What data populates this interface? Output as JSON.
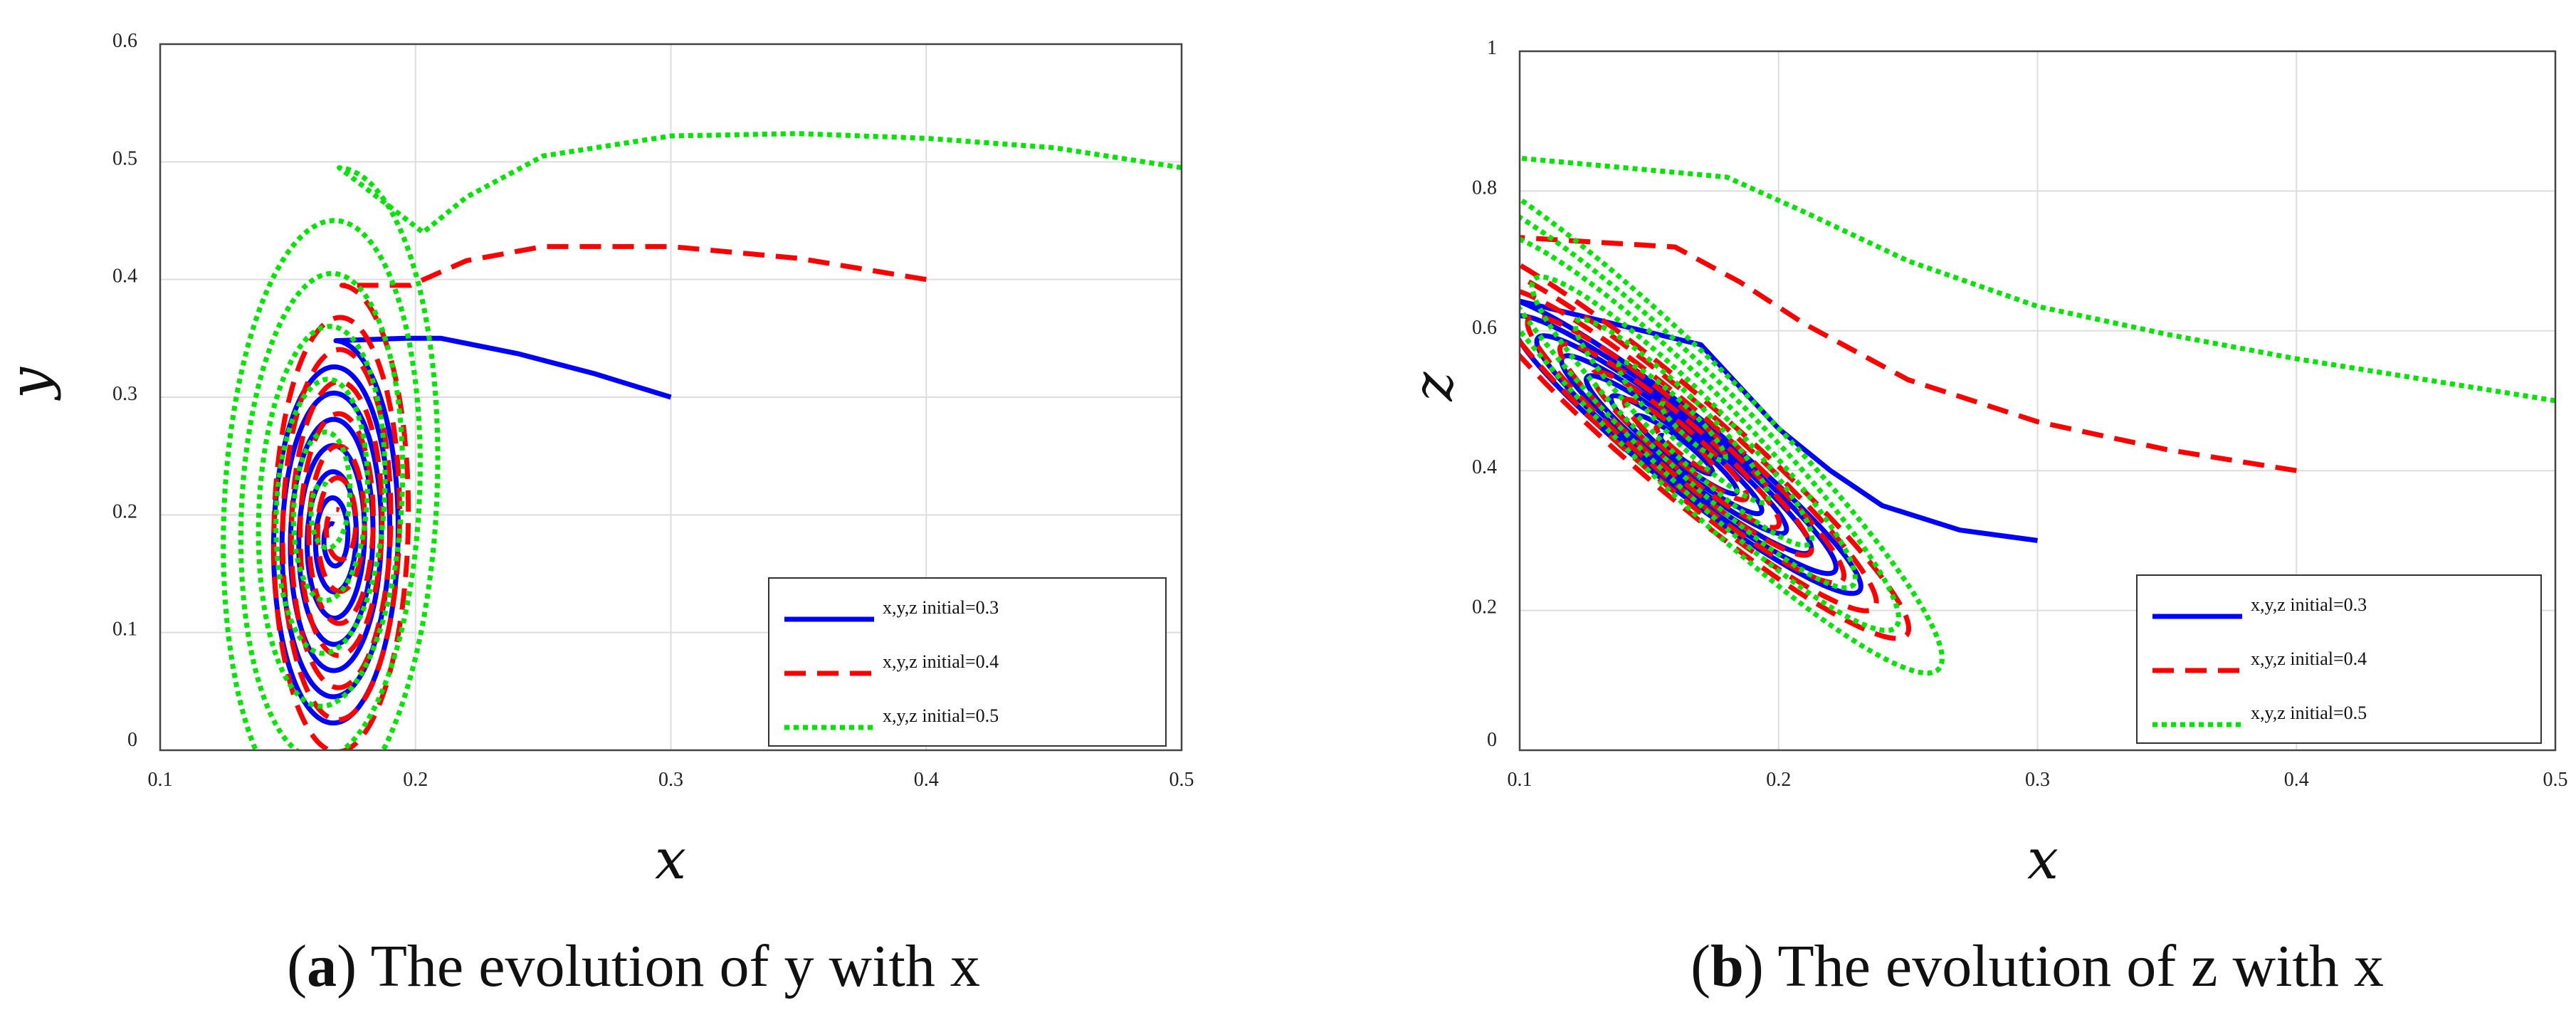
{
  "chart_data": [
    {
      "type": "line",
      "caption": {
        "open": "(",
        "letter": "a",
        "text": ") The evolution of y with x"
      },
      "xlabel": "x",
      "ylabel": "y",
      "xlim": [
        0.1,
        0.5
      ],
      "ylim": [
        0,
        0.6
      ],
      "x_ticks": [
        0.1,
        0.2,
        0.3,
        0.4,
        0.5
      ],
      "x_tick_labels": [
        "0.1",
        "0.2",
        "0.3",
        "0.4",
        "0.5"
      ],
      "y_ticks": [
        0,
        0.1,
        0.2,
        0.3,
        0.4,
        0.5,
        0.6
      ],
      "y_tick_labels": [
        "0",
        "0.1",
        "0.2",
        "0.3",
        "0.4",
        "0.5",
        "0.6"
      ],
      "grid": true,
      "legend_position": "bottom-right",
      "series": [
        {
          "name": "x,y,z initial=0.3",
          "color": "#0000ff",
          "style": "solid",
          "tail": [
            [
              0.3,
              0.3
            ],
            [
              0.27,
              0.32
            ],
            [
              0.24,
              0.337
            ],
            [
              0.21,
              0.35
            ],
            [
              0.196,
              0.35
            ]
          ],
          "spiral": {
            "center": [
              0.168,
              0.18
            ],
            "rx_start": 0.026,
            "rx_end": 0.003,
            "ry_start": 0.168,
            "ry_end": 0.012,
            "tilt": 0.05,
            "turns": 7
          }
        },
        {
          "name": "x,y,z initial=0.4",
          "color": "#ff0000",
          "style": "dashed",
          "tail": [
            [
              0.4,
              0.4
            ],
            [
              0.35,
              0.418
            ],
            [
              0.3,
              0.428
            ],
            [
              0.25,
              0.428
            ],
            [
              0.22,
              0.416
            ],
            [
              0.198,
              0.395
            ]
          ],
          "spiral": {
            "center": [
              0.17,
              0.19
            ],
            "rx_start": 0.028,
            "rx_end": 0.004,
            "ry_start": 0.205,
            "ry_end": 0.014,
            "tilt": 0.06,
            "turns": 7
          }
        },
        {
          "name": "x,y,z initial=0.5",
          "color": "#00e600",
          "style": "dotted",
          "tail": [
            [
              0.5,
              0.495
            ],
            [
              0.45,
              0.512
            ],
            [
              0.4,
              0.52
            ],
            [
              0.35,
              0.524
            ],
            [
              0.3,
              0.522
            ],
            [
              0.25,
              0.505
            ],
            [
              0.22,
              0.47
            ],
            [
              0.203,
              0.44
            ]
          ],
          "spiral": {
            "center": [
              0.165,
              0.21
            ],
            "rx_start": 0.045,
            "rx_end": 0.004,
            "ry_start": 0.285,
            "ry_end": 0.015,
            "tilt": 0.18,
            "turns": 6
          }
        }
      ]
    },
    {
      "type": "line",
      "caption": {
        "open": "(",
        "letter": "b",
        "text": ") The evolution of z with x"
      },
      "xlabel": "x",
      "ylabel": "z",
      "xlim": [
        0.1,
        0.5
      ],
      "ylim": [
        0,
        1
      ],
      "x_ticks": [
        0.1,
        0.2,
        0.3,
        0.4,
        0.5
      ],
      "x_tick_labels": [
        "0.1",
        "0.2",
        "0.3",
        "0.4",
        "0.5"
      ],
      "y_ticks": [
        0,
        0.2,
        0.4,
        0.6,
        0.8,
        1
      ],
      "y_tick_labels": [
        "0",
        "0.2",
        "0.4",
        "0.6",
        "0.8",
        "1"
      ],
      "grid": true,
      "legend_position": "bottom-right",
      "series": [
        {
          "name": "x,y,z initial=0.3",
          "color": "#0000ff",
          "style": "solid",
          "tail": [
            [
              0.3,
              0.3
            ],
            [
              0.27,
              0.315
            ],
            [
              0.24,
              0.35
            ],
            [
              0.22,
              0.4
            ],
            [
              0.2,
              0.46
            ],
            [
              0.185,
              0.52
            ],
            [
              0.17,
              0.58
            ]
          ],
          "spiral": {
            "center": [
              0.162,
              0.43
            ],
            "rx_start": 0.023,
            "rx_end": 0.003,
            "ry_start": 0.22,
            "ry_end": 0.02,
            "tilt": -3.2,
            "turns": 7
          }
        },
        {
          "name": "x,y,z initial=0.4",
          "color": "#ff0000",
          "style": "dashed",
          "tail": [
            [
              0.4,
              0.4
            ],
            [
              0.35,
              0.43
            ],
            [
              0.3,
              0.47
            ],
            [
              0.25,
              0.53
            ],
            [
              0.21,
              0.61
            ],
            [
              0.185,
              0.67
            ],
            [
              0.16,
              0.72
            ]
          ],
          "spiral": {
            "center": [
              0.161,
              0.44
            ],
            "rx_start": 0.03,
            "rx_end": 0.003,
            "ry_start": 0.3,
            "ry_end": 0.022,
            "tilt": -3.0,
            "turns": 7
          }
        },
        {
          "name": "x,y,z initial=0.5",
          "color": "#00e600",
          "style": "dotted",
          "tail": [
            [
              0.5,
              0.5
            ],
            [
              0.45,
              0.53
            ],
            [
              0.4,
              0.56
            ],
            [
              0.35,
              0.595
            ],
            [
              0.3,
              0.635
            ],
            [
              0.25,
              0.7
            ],
            [
              0.21,
              0.77
            ],
            [
              0.18,
              0.82
            ]
          ],
          "spiral": {
            "center": [
              0.163,
              0.47
            ],
            "rx_start": 0.036,
            "rx_end": 0.003,
            "ry_start": 0.39,
            "ry_end": 0.024,
            "tilt": -2.6,
            "turns": 6
          }
        }
      ]
    }
  ]
}
